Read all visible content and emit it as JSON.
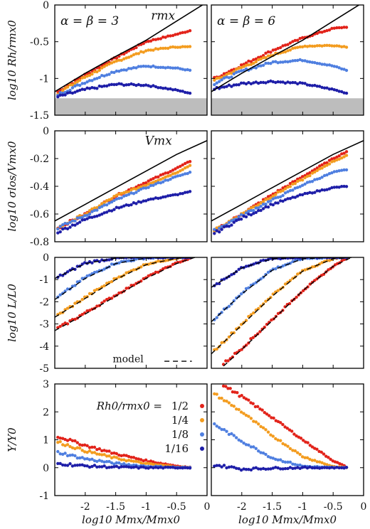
{
  "colors": {
    "s1": "#e2231a",
    "s2": "#f39c1f",
    "s3": "#4f7fe0",
    "s4": "#1e1ea8",
    "shade": "#bdbdbd"
  },
  "figure": {
    "xlabel": "log10 Mmx/Mmx0",
    "columns": [
      {
        "label": "α = β = 3",
        "label_parts": [
          "α = β = 3"
        ]
      },
      {
        "label": "α = β = 6",
        "label_parts": [
          "α = β = 6"
        ]
      }
    ],
    "legend": {
      "title": "Rh0/rmx0 =",
      "entries": [
        "1/2",
        "1/4",
        "1/8",
        "1/16"
      ]
    }
  },
  "chart_data": [
    {
      "type": "scatter",
      "ylabel": "log10 Rh/rmx0",
      "xlim": [
        -2.5,
        0
      ],
      "ylim": [
        -1.5,
        0
      ],
      "x_ticks": [],
      "y_ticks": [
        "-1.5",
        "-1",
        "-0.5",
        "0"
      ],
      "curve_label": "rmx",
      "shaded_below": -1.27,
      "left": {
        "series": [
          {
            "name": "1/2",
            "x": [
              -2.45,
              -2.0,
              -1.5,
              -1.0,
              -0.5,
              -0.28
            ],
            "y": [
              -1.18,
              -0.95,
              -0.72,
              -0.5,
              -0.4,
              -0.35
            ]
          },
          {
            "name": "1/4",
            "x": [
              -2.45,
              -2.0,
              -1.5,
              -1.0,
              -0.5,
              -0.28
            ],
            "y": [
              -1.2,
              -0.98,
              -0.77,
              -0.62,
              -0.57,
              -0.57
            ]
          },
          {
            "name": "1/8",
            "x": [
              -2.45,
              -2.0,
              -1.5,
              -1.0,
              -0.5,
              -0.28
            ],
            "y": [
              -1.22,
              -1.05,
              -0.9,
              -0.83,
              -0.86,
              -0.89
            ]
          },
          {
            "name": "1/16",
            "x": [
              -2.45,
              -2.0,
              -1.5,
              -1.0,
              -0.5,
              -0.28
            ],
            "y": [
              -1.25,
              -1.15,
              -1.08,
              -1.09,
              -1.16,
              -1.2
            ]
          }
        ],
        "curve": {
          "x": [
            -2.5,
            -2.0,
            -1.5,
            -1.0,
            -0.5,
            0.0
          ],
          "y": [
            -1.18,
            -0.93,
            -0.7,
            -0.48,
            -0.22,
            0.04
          ]
        }
      },
      "right": {
        "series": [
          {
            "name": "1/2",
            "x": [
              -2.45,
              -2.0,
              -1.5,
              -1.0,
              -0.5,
              -0.28
            ],
            "y": [
              -1.0,
              -0.82,
              -0.62,
              -0.45,
              -0.32,
              -0.3
            ]
          },
          {
            "name": "1/4",
            "x": [
              -2.45,
              -2.0,
              -1.5,
              -1.0,
              -0.5,
              -0.28
            ],
            "y": [
              -1.03,
              -0.85,
              -0.68,
              -0.56,
              -0.55,
              -0.57
            ]
          },
          {
            "name": "1/8",
            "x": [
              -2.45,
              -2.0,
              -1.5,
              -1.0,
              -0.5,
              -0.28
            ],
            "y": [
              -1.07,
              -0.9,
              -0.78,
              -0.75,
              -0.83,
              -0.89
            ]
          },
          {
            "name": "1/16",
            "x": [
              -2.45,
              -2.0,
              -1.5,
              -1.0,
              -0.5,
              -0.28
            ],
            "y": [
              -1.14,
              -1.07,
              -1.04,
              -1.07,
              -1.15,
              -1.2
            ]
          }
        ],
        "curve": {
          "x": [
            -2.5,
            -2.0,
            -1.5,
            -1.0,
            -0.5,
            0.0
          ],
          "y": [
            -1.18,
            -0.93,
            -0.7,
            -0.48,
            -0.22,
            0.04
          ]
        }
      }
    },
    {
      "type": "scatter",
      "ylabel": "log10 σlos/Vmx0",
      "xlim": [
        -2.5,
        0
      ],
      "ylim": [
        -0.8,
        0
      ],
      "x_ticks": [],
      "y_ticks": [
        "-0.8",
        "-0.6",
        "-0.4",
        "-0.2",
        "0"
      ],
      "curve_label": "Vmx",
      "left": {
        "series": [
          {
            "name": "1/2",
            "x": [
              -2.45,
              -2.0,
              -1.5,
              -1.0,
              -0.5,
              -0.28
            ],
            "y": [
              -0.7,
              -0.6,
              -0.47,
              -0.37,
              -0.27,
              -0.22
            ]
          },
          {
            "name": "1/4",
            "x": [
              -2.45,
              -2.0,
              -1.5,
              -1.0,
              -0.5,
              -0.28
            ],
            "y": [
              -0.7,
              -0.6,
              -0.47,
              -0.39,
              -0.3,
              -0.25
            ]
          },
          {
            "name": "1/8",
            "x": [
              -2.45,
              -2.0,
              -1.5,
              -1.0,
              -0.5,
              -0.28
            ],
            "y": [
              -0.7,
              -0.61,
              -0.5,
              -0.41,
              -0.33,
              -0.3
            ]
          },
          {
            "name": "1/16",
            "x": [
              -2.45,
              -2.0,
              -1.5,
              -1.0,
              -0.5,
              -0.28
            ],
            "y": [
              -0.73,
              -0.64,
              -0.56,
              -0.5,
              -0.46,
              -0.44
            ]
          }
        ],
        "curve": {
          "x": [
            -2.5,
            -2.0,
            -1.5,
            -1.0,
            -0.5,
            0.0
          ],
          "y": [
            -0.65,
            -0.53,
            -0.41,
            -0.29,
            -0.17,
            -0.07
          ]
        }
      },
      "right": {
        "series": [
          {
            "name": "1/2",
            "x": [
              -2.45,
              -2.0,
              -1.5,
              -1.0,
              -0.5,
              -0.28
            ],
            "y": [
              -0.72,
              -0.6,
              -0.46,
              -0.33,
              -0.2,
              -0.15
            ]
          },
          {
            "name": "1/4",
            "x": [
              -2.45,
              -2.0,
              -1.5,
              -1.0,
              -0.5,
              -0.28
            ],
            "y": [
              -0.72,
              -0.6,
              -0.47,
              -0.35,
              -0.22,
              -0.18
            ]
          },
          {
            "name": "1/8",
            "x": [
              -2.45,
              -2.0,
              -1.5,
              -1.0,
              -0.5,
              -0.28
            ],
            "y": [
              -0.72,
              -0.61,
              -0.5,
              -0.39,
              -0.3,
              -0.28
            ]
          },
          {
            "name": "1/16",
            "x": [
              -2.45,
              -2.0,
              -1.5,
              -1.0,
              -0.5,
              -0.28
            ],
            "y": [
              -0.74,
              -0.63,
              -0.53,
              -0.46,
              -0.41,
              -0.4
            ]
          }
        ],
        "curve": {
          "x": [
            -2.5,
            -2.0,
            -1.5,
            -1.0,
            -0.5,
            0.0
          ],
          "y": [
            -0.65,
            -0.53,
            -0.41,
            -0.29,
            -0.17,
            -0.07
          ]
        }
      }
    },
    {
      "type": "scatter",
      "ylabel": "log10 L/L0",
      "xlim": [
        -2.5,
        0
      ],
      "ylim": [
        -5,
        0
      ],
      "x_ticks": [],
      "y_ticks": [
        "-5",
        "-4",
        "-3",
        "-2",
        "-1",
        "0"
      ],
      "model_label": "model",
      "left": {
        "series": [
          {
            "name": "1/2",
            "x": [
              -2.45,
              -2.0,
              -1.5,
              -1.0,
              -0.5,
              -0.28
            ],
            "y": [
              -3.2,
              -2.5,
              -1.7,
              -0.9,
              -0.25,
              -0.05
            ]
          },
          {
            "name": "1/4",
            "x": [
              -2.45,
              -2.0,
              -1.5,
              -1.0,
              -0.5,
              -0.28
            ],
            "y": [
              -2.6,
              -1.8,
              -0.95,
              -0.3,
              -0.03,
              0.0
            ]
          },
          {
            "name": "1/8",
            "x": [
              -2.45,
              -2.0,
              -1.5,
              -1.0,
              -0.5,
              -0.28
            ],
            "y": [
              -1.8,
              -0.9,
              -0.25,
              -0.02,
              0.0,
              0.0
            ]
          },
          {
            "name": "1/16",
            "x": [
              -2.45,
              -2.0,
              -1.5,
              -1.0,
              -0.5,
              -0.28
            ],
            "y": [
              -0.9,
              -0.25,
              -0.03,
              0.0,
              0.0,
              0.0
            ]
          }
        ],
        "model": [
          {
            "x": [
              -2.5,
              -2.0,
              -1.5,
              -1.0,
              -0.5,
              -0.2
            ],
            "y": [
              -3.3,
              -2.55,
              -1.75,
              -0.95,
              -0.28,
              0.0
            ]
          },
          {
            "x": [
              -2.5,
              -2.0,
              -1.5,
              -1.0,
              -0.5,
              -0.2
            ],
            "y": [
              -2.7,
              -1.85,
              -1.0,
              -0.33,
              -0.04,
              0.0
            ]
          },
          {
            "x": [
              -2.5,
              -2.0,
              -1.5,
              -1.0,
              -0.5,
              -0.2
            ],
            "y": [
              -1.9,
              -0.95,
              -0.28,
              -0.03,
              0.0,
              0.0
            ]
          },
          {
            "x": [
              -2.5,
              -2.0,
              -1.5,
              -1.0,
              -0.5,
              -0.2
            ],
            "y": [
              -0.95,
              -0.28,
              -0.04,
              0.0,
              0.0,
              0.0
            ]
          }
        ]
      },
      "right": {
        "series": [
          {
            "name": "1/2",
            "x": [
              -2.3,
              -2.0,
              -1.5,
              -1.0,
              -0.5,
              -0.28
            ],
            "y": [
              -4.8,
              -4.1,
              -2.8,
              -1.5,
              -0.4,
              -0.05
            ]
          },
          {
            "name": "1/4",
            "x": [
              -2.45,
              -2.0,
              -1.5,
              -1.0,
              -0.5,
              -0.28
            ],
            "y": [
              -4.2,
              -3.0,
              -1.7,
              -0.6,
              -0.05,
              0.0
            ]
          },
          {
            "name": "1/8",
            "x": [
              -2.45,
              -2.0,
              -1.5,
              -1.0,
              -0.5,
              -0.28
            ],
            "y": [
              -2.8,
              -1.6,
              -0.55,
              -0.05,
              0.0,
              0.0
            ]
          },
          {
            "name": "1/16",
            "x": [
              -2.45,
              -2.0,
              -1.5,
              -1.0,
              -0.5,
              -0.28
            ],
            "y": [
              -1.3,
              -0.45,
              -0.05,
              0.0,
              0.0,
              0.0
            ]
          }
        ],
        "model": [
          {
            "x": [
              -2.3,
              -2.0,
              -1.5,
              -1.0,
              -0.5,
              -0.2
            ],
            "y": [
              -4.9,
              -4.15,
              -2.85,
              -1.5,
              -0.4,
              0.0
            ]
          },
          {
            "x": [
              -2.5,
              -2.0,
              -1.5,
              -1.0,
              -0.5,
              -0.2
            ],
            "y": [
              -4.35,
              -3.05,
              -1.75,
              -0.62,
              -0.06,
              0.0
            ]
          },
          {
            "x": [
              -2.5,
              -2.0,
              -1.5,
              -1.0,
              -0.5,
              -0.2
            ],
            "y": [
              -2.9,
              -1.65,
              -0.58,
              -0.06,
              0.0,
              0.0
            ]
          },
          {
            "x": [
              -2.5,
              -2.0,
              -1.5,
              -1.0,
              -0.5,
              -0.2
            ],
            "y": [
              -1.35,
              -0.48,
              -0.06,
              0.0,
              0.0,
              0.0
            ]
          }
        ]
      }
    },
    {
      "type": "scatter",
      "ylabel": "Υ/Υ0",
      "xlim": [
        -2.5,
        0
      ],
      "ylim": [
        -1,
        3
      ],
      "x_ticks": [
        "-2",
        "-1.5",
        "-1",
        "-0.5",
        "0"
      ],
      "y_ticks": [
        "-1",
        "0",
        "1",
        "2",
        "3"
      ],
      "left": {
        "series": [
          {
            "name": "1/2",
            "x": [
              -2.45,
              -2.0,
              -1.5,
              -1.0,
              -0.5,
              -0.28
            ],
            "y": [
              1.12,
              0.8,
              0.5,
              0.25,
              0.06,
              0.01
            ]
          },
          {
            "name": "1/4",
            "x": [
              -2.45,
              -2.0,
              -1.5,
              -1.0,
              -0.5,
              -0.28
            ],
            "y": [
              0.92,
              0.6,
              0.34,
              0.14,
              0.03,
              0.0
            ]
          },
          {
            "name": "1/8",
            "x": [
              -2.45,
              -2.0,
              -1.5,
              -1.0,
              -0.5,
              -0.28
            ],
            "y": [
              0.55,
              0.32,
              0.15,
              0.05,
              0.01,
              0.0
            ]
          },
          {
            "name": "1/16",
            "x": [
              -2.45,
              -2.0,
              -1.5,
              -1.0,
              -0.5,
              -0.28
            ],
            "y": [
              0.15,
              0.06,
              0.02,
              0.0,
              0.0,
              0.0
            ]
          }
        ]
      },
      "right": {
        "series": [
          {
            "name": "1/2",
            "x": [
              -2.3,
              -2.0,
              -1.5,
              -1.0,
              -0.5,
              -0.28
            ],
            "y": [
              2.95,
              2.55,
              1.8,
              1.0,
              0.25,
              0.02
            ]
          },
          {
            "name": "1/4",
            "x": [
              -2.45,
              -2.0,
              -1.5,
              -1.0,
              -0.5,
              -0.28
            ],
            "y": [
              2.65,
              2.0,
              1.15,
              0.4,
              0.04,
              0.0
            ]
          },
          {
            "name": "1/8",
            "x": [
              -2.45,
              -2.0,
              -1.5,
              -1.0,
              -0.5,
              -0.28
            ],
            "y": [
              1.55,
              0.95,
              0.35,
              0.05,
              0.0,
              0.0
            ]
          },
          {
            "name": "1/16",
            "x": [
              -2.45,
              -2.0,
              -1.5,
              -1.0,
              -0.5,
              -0.28
            ],
            "y": [
              0.1,
              -0.05,
              -0.02,
              0.0,
              0.0,
              0.0
            ]
          }
        ]
      }
    }
  ]
}
